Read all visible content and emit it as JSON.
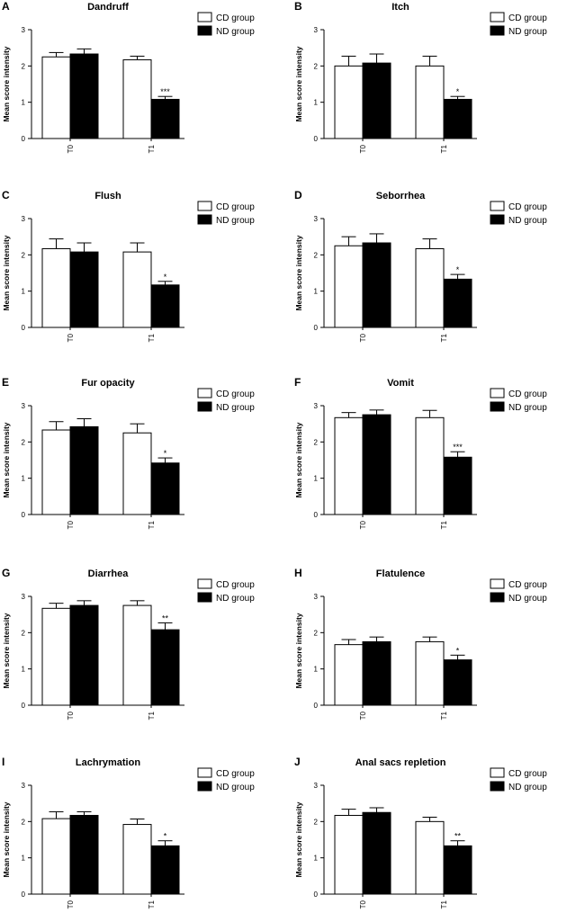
{
  "legend": {
    "cd": "CD group",
    "nd": "ND group"
  },
  "axis": {
    "ylabel": "Mean score intensity",
    "yticks": [
      "0",
      "1",
      "2",
      "3"
    ],
    "categories": [
      "T0",
      "T1"
    ]
  },
  "chart_data": [
    {
      "letter": "A",
      "type": "bar",
      "title": "Dandruff",
      "ylim": [
        0,
        3
      ],
      "categories": [
        "T0",
        "T1"
      ],
      "series": [
        {
          "name": "CD group",
          "values": [
            2.25,
            2.17
          ],
          "errors": [
            0.12,
            0.1
          ]
        },
        {
          "name": "ND group",
          "values": [
            2.33,
            1.08
          ],
          "errors": [
            0.14,
            0.08
          ]
        }
      ],
      "significance": "***"
    },
    {
      "letter": "B",
      "type": "bar",
      "title": "Itch",
      "ylim": [
        0,
        3
      ],
      "categories": [
        "T0",
        "T1"
      ],
      "series": [
        {
          "name": "CD group",
          "values": [
            2.0,
            2.0
          ],
          "errors": [
            0.27,
            0.27
          ]
        },
        {
          "name": "ND group",
          "values": [
            2.08,
            1.08
          ],
          "errors": [
            0.25,
            0.08
          ]
        }
      ],
      "significance": "*"
    },
    {
      "letter": "C",
      "type": "bar",
      "title": "Flush",
      "ylim": [
        0,
        3
      ],
      "categories": [
        "T0",
        "T1"
      ],
      "series": [
        {
          "name": "CD group",
          "values": [
            2.17,
            2.08
          ],
          "errors": [
            0.27,
            0.25
          ]
        },
        {
          "name": "ND group",
          "values": [
            2.08,
            1.17
          ],
          "errors": [
            0.25,
            0.1
          ]
        }
      ],
      "significance": "*"
    },
    {
      "letter": "D",
      "type": "bar",
      "title": "Seborrhea",
      "ylim": [
        0,
        3
      ],
      "categories": [
        "T0",
        "T1"
      ],
      "series": [
        {
          "name": "CD group",
          "values": [
            2.25,
            2.17
          ],
          "errors": [
            0.25,
            0.27
          ]
        },
        {
          "name": "ND group",
          "values": [
            2.33,
            1.33
          ],
          "errors": [
            0.25,
            0.13
          ]
        }
      ],
      "significance": "*"
    },
    {
      "letter": "E",
      "type": "bar",
      "title": "Fur opacity",
      "ylim": [
        0,
        3
      ],
      "categories": [
        "T0",
        "T1"
      ],
      "series": [
        {
          "name": "CD group",
          "values": [
            2.33,
            2.25
          ],
          "errors": [
            0.23,
            0.25
          ]
        },
        {
          "name": "ND group",
          "values": [
            2.42,
            1.42
          ],
          "errors": [
            0.22,
            0.14
          ]
        }
      ],
      "significance": "*"
    },
    {
      "letter": "F",
      "type": "bar",
      "title": "Vomit",
      "ylim": [
        0,
        3
      ],
      "categories": [
        "T0",
        "T1"
      ],
      "series": [
        {
          "name": "CD group",
          "values": [
            2.67,
            2.67
          ],
          "errors": [
            0.14,
            0.2
          ]
        },
        {
          "name": "ND group",
          "values": [
            2.75,
            1.58
          ],
          "errors": [
            0.13,
            0.15
          ]
        }
      ],
      "significance": "***"
    },
    {
      "letter": "G",
      "type": "bar",
      "title": "Diarrhea",
      "ylim": [
        0,
        3
      ],
      "categories": [
        "T0",
        "T1"
      ],
      "series": [
        {
          "name": "CD group",
          "values": [
            2.67,
            2.75
          ],
          "errors": [
            0.14,
            0.13
          ]
        },
        {
          "name": "ND group",
          "values": [
            2.75,
            2.08
          ],
          "errors": [
            0.13,
            0.19
          ]
        }
      ],
      "significance": "**"
    },
    {
      "letter": "H",
      "type": "bar",
      "title": "Flatulence",
      "ylim": [
        0,
        3
      ],
      "categories": [
        "T0",
        "T1"
      ],
      "series": [
        {
          "name": "CD group",
          "values": [
            1.67,
            1.75
          ],
          "errors": [
            0.14,
            0.13
          ]
        },
        {
          "name": "ND group",
          "values": [
            1.75,
            1.25
          ],
          "errors": [
            0.13,
            0.13
          ]
        }
      ],
      "significance": "*"
    },
    {
      "letter": "I",
      "type": "bar",
      "title": "Lachrymation",
      "ylim": [
        0,
        3
      ],
      "categories": [
        "T0",
        "T1"
      ],
      "series": [
        {
          "name": "CD group",
          "values": [
            2.08,
            1.92
          ],
          "errors": [
            0.19,
            0.15
          ]
        },
        {
          "name": "ND group",
          "values": [
            2.17,
            1.33
          ],
          "errors": [
            0.1,
            0.14
          ]
        }
      ],
      "significance": "*"
    },
    {
      "letter": "J",
      "type": "bar",
      "title": "Anal sacs repletion",
      "ylim": [
        0,
        3
      ],
      "categories": [
        "T0",
        "T1"
      ],
      "series": [
        {
          "name": "CD group",
          "values": [
            2.17,
            2.0
          ],
          "errors": [
            0.17,
            0.12
          ]
        },
        {
          "name": "ND group",
          "values": [
            2.25,
            1.33
          ],
          "errors": [
            0.13,
            0.14
          ]
        }
      ],
      "significance": "**"
    }
  ]
}
